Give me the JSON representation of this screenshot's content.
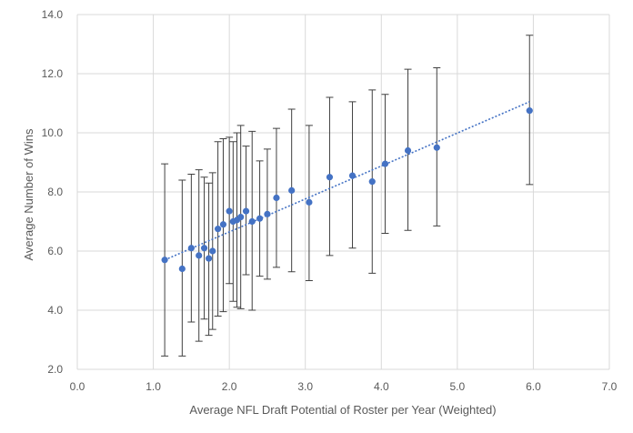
{
  "chart_data": {
    "type": "scatter",
    "title": "",
    "xlabel": "Average NFL Draft Potential of Roster per Year (Weighted)",
    "ylabel": "Average Number of Wins",
    "xlim": [
      0,
      7
    ],
    "ylim": [
      2,
      14
    ],
    "x_ticks": [
      "0.0",
      "1.0",
      "2.0",
      "3.0",
      "4.0",
      "5.0",
      "6.0",
      "7.0"
    ],
    "y_ticks": [
      "2.0",
      "4.0",
      "6.0",
      "8.0",
      "10.0",
      "12.0",
      "14.0"
    ],
    "grid": true,
    "legend": "none",
    "point_color": "#4472C4",
    "trendline": {
      "type": "linear",
      "style": "dotted",
      "color": "#4472C4",
      "from": [
        1.15,
        5.7
      ],
      "to": [
        5.95,
        11.05
      ]
    },
    "points": [
      {
        "x": 1.15,
        "y": 5.7,
        "low": 2.45,
        "high": 8.95
      },
      {
        "x": 1.38,
        "y": 5.4,
        "low": 2.45,
        "high": 8.4
      },
      {
        "x": 1.5,
        "y": 6.1,
        "low": 3.6,
        "high": 8.6
      },
      {
        "x": 1.6,
        "y": 5.85,
        "low": 2.95,
        "high": 8.75
      },
      {
        "x": 1.67,
        "y": 6.1,
        "low": 3.7,
        "high": 8.5
      },
      {
        "x": 1.73,
        "y": 5.75,
        "low": 3.15,
        "high": 8.3
      },
      {
        "x": 1.78,
        "y": 6.0,
        "low": 3.35,
        "high": 8.65
      },
      {
        "x": 1.85,
        "y": 6.75,
        "low": 3.8,
        "high": 9.7
      },
      {
        "x": 1.92,
        "y": 6.9,
        "low": 3.95,
        "high": 9.8
      },
      {
        "x": 2.0,
        "y": 7.35,
        "low": 4.9,
        "high": 9.85
      },
      {
        "x": 2.05,
        "y": 7.0,
        "low": 4.3,
        "high": 9.7
      },
      {
        "x": 2.1,
        "y": 7.05,
        "low": 4.1,
        "high": 10.0
      },
      {
        "x": 2.15,
        "y": 7.15,
        "low": 4.05,
        "high": 10.25
      },
      {
        "x": 2.22,
        "y": 7.35,
        "low": 5.2,
        "high": 9.55
      },
      {
        "x": 2.3,
        "y": 7.0,
        "low": 4.0,
        "high": 10.05
      },
      {
        "x": 2.4,
        "y": 7.1,
        "low": 5.15,
        "high": 9.05
      },
      {
        "x": 2.5,
        "y": 7.25,
        "low": 5.05,
        "high": 9.45
      },
      {
        "x": 2.62,
        "y": 7.8,
        "low": 5.45,
        "high": 10.15
      },
      {
        "x": 2.82,
        "y": 8.05,
        "low": 5.3,
        "high": 10.8
      },
      {
        "x": 3.05,
        "y": 7.65,
        "low": 5.0,
        "high": 10.25
      },
      {
        "x": 3.32,
        "y": 8.5,
        "low": 5.85,
        "high": 11.2
      },
      {
        "x": 3.62,
        "y": 8.55,
        "low": 6.1,
        "high": 11.05
      },
      {
        "x": 3.88,
        "y": 8.35,
        "low": 5.25,
        "high": 11.45
      },
      {
        "x": 4.05,
        "y": 8.95,
        "low": 6.6,
        "high": 11.3
      },
      {
        "x": 4.35,
        "y": 9.4,
        "low": 6.7,
        "high": 12.15
      },
      {
        "x": 4.73,
        "y": 9.5,
        "low": 6.85,
        "high": 12.2
      },
      {
        "x": 5.95,
        "y": 10.75,
        "low": 8.25,
        "high": 13.3
      }
    ]
  }
}
